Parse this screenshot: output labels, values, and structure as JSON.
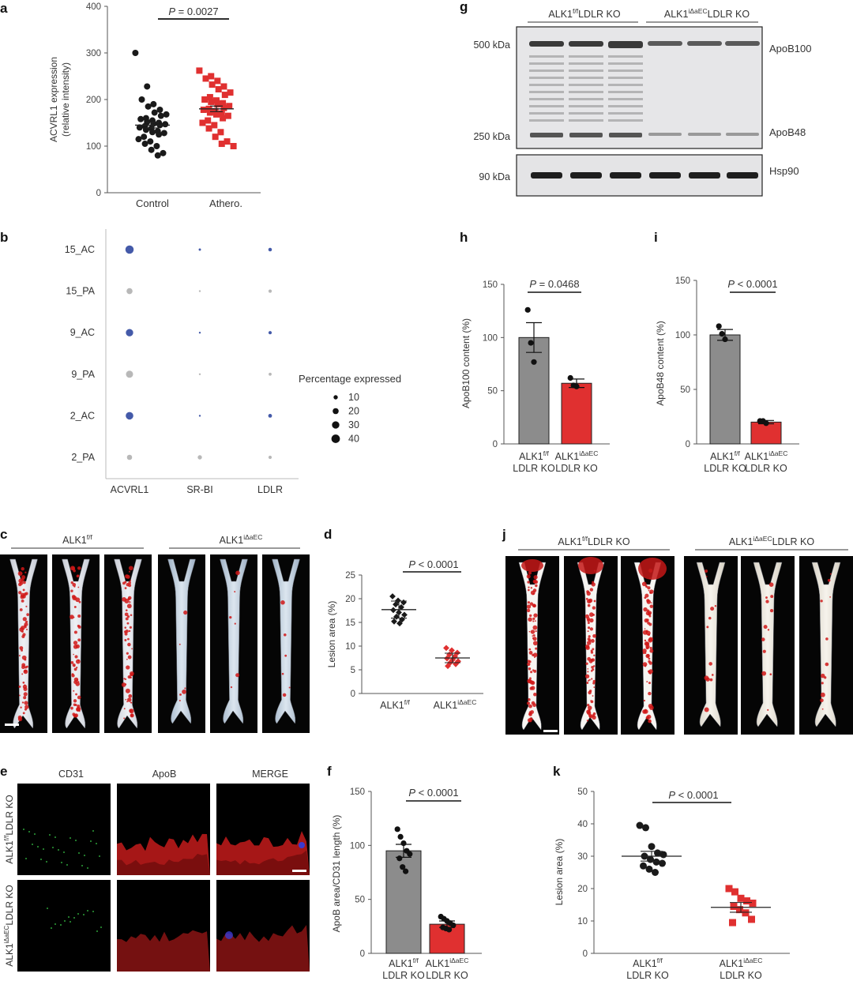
{
  "colors": {
    "black": "#1a1a1a",
    "red": "#e03030",
    "gray_bar": "#8c8c8c",
    "dot_blue": "#3048a0",
    "dot_gray": "#b8b8b8",
    "axis": "#555555"
  },
  "panel_labels": {
    "a": "a",
    "b": "b",
    "c": "c",
    "d": "d",
    "e": "e",
    "f": "f",
    "g": "g",
    "h": "h",
    "i": "i",
    "j": "j",
    "k": "k"
  },
  "chart_data": [
    {
      "id": "a",
      "type": "scatter",
      "title": "",
      "xlabel": "",
      "ylabel": "ACVRL1 expression (relative intensity)",
      "ylabel_lines": [
        "ACVRL1 expression",
        "(relative intensity)"
      ],
      "categories": [
        "Control",
        "Athero."
      ],
      "yticks": [
        0,
        100,
        200,
        300,
        400
      ],
      "ylim": [
        0,
        400
      ],
      "pvalue_label": "P",
      "pvalue_text": " = 0.0027",
      "series": [
        {
          "category": "Control",
          "marker": "circle",
          "color": "#1a1a1a",
          "mean": 145,
          "sem": 6,
          "values": [
            300,
            228,
            200,
            190,
            185,
            178,
            172,
            168,
            165,
            160,
            158,
            155,
            152,
            150,
            148,
            147,
            145,
            143,
            140,
            138,
            135,
            132,
            130,
            128,
            125,
            120,
            115,
            110,
            105,
            100,
            92,
            85,
            80
          ]
        },
        {
          "category": "Athero.",
          "marker": "square",
          "color": "#e03030",
          "mean": 180,
          "sem": 6,
          "values": [
            262,
            250,
            245,
            240,
            232,
            228,
            222,
            215,
            210,
            205,
            200,
            198,
            195,
            192,
            190,
            186,
            182,
            180,
            178,
            175,
            172,
            170,
            168,
            165,
            160,
            155,
            150,
            145,
            138,
            130,
            120,
            110,
            105,
            100
          ]
        }
      ]
    },
    {
      "id": "b",
      "type": "scatter",
      "subtype": "dotplot",
      "title": "",
      "xlabel": "",
      "ylabel": "",
      "x_categories": [
        "ACVRL1",
        "SR-BI",
        "LDLR"
      ],
      "y_categories": [
        "15_AC",
        "15_PA",
        "9_AC",
        "9_PA",
        "2_AC",
        "2_PA"
      ],
      "legend_title": "Percentage expressed",
      "legend_placement": "right",
      "legend_sizes": [
        10,
        20,
        30,
        40
      ],
      "points": [
        {
          "x": "ACVRL1",
          "y": "15_AC",
          "pct": 38,
          "color": "blue"
        },
        {
          "x": "ACVRL1",
          "y": "15_PA",
          "pct": 20,
          "color": "gray"
        },
        {
          "x": "ACVRL1",
          "y": "9_AC",
          "pct": 30,
          "color": "blue"
        },
        {
          "x": "ACVRL1",
          "y": "9_PA",
          "pct": 28,
          "color": "gray"
        },
        {
          "x": "ACVRL1",
          "y": "2_AC",
          "pct": 32,
          "color": "blue"
        },
        {
          "x": "ACVRL1",
          "y": "2_PA",
          "pct": 15,
          "color": "gray"
        },
        {
          "x": "SR-BI",
          "y": "15_AC",
          "pct": 3,
          "color": "blue"
        },
        {
          "x": "SR-BI",
          "y": "15_PA",
          "pct": 2,
          "color": "gray"
        },
        {
          "x": "SR-BI",
          "y": "9_AC",
          "pct": 2,
          "color": "blue"
        },
        {
          "x": "SR-BI",
          "y": "9_PA",
          "pct": 2,
          "color": "gray"
        },
        {
          "x": "SR-BI",
          "y": "2_AC",
          "pct": 2,
          "color": "blue"
        },
        {
          "x": "SR-BI",
          "y": "2_PA",
          "pct": 10,
          "color": "gray"
        },
        {
          "x": "LDLR",
          "y": "15_AC",
          "pct": 7,
          "color": "blue"
        },
        {
          "x": "LDLR",
          "y": "15_PA",
          "pct": 6,
          "color": "gray"
        },
        {
          "x": "LDLR",
          "y": "9_AC",
          "pct": 6,
          "color": "blue"
        },
        {
          "x": "LDLR",
          "y": "9_PA",
          "pct": 5,
          "color": "gray"
        },
        {
          "x": "LDLR",
          "y": "2_AC",
          "pct": 8,
          "color": "blue"
        },
        {
          "x": "LDLR",
          "y": "2_PA",
          "pct": 6,
          "color": "gray"
        }
      ]
    },
    {
      "id": "d",
      "type": "scatter",
      "title": "",
      "xlabel": "",
      "ylabel": "Lesion area (%)",
      "categories": [
        "ALK1f/f",
        "ALK1iΔaEC"
      ],
      "yticks": [
        0,
        5,
        10,
        15,
        20,
        25
      ],
      "ylim": [
        0,
        25
      ],
      "pvalue_label": "P",
      "pvalue_text": " < 0.0001",
      "series": [
        {
          "category": "ALK1f/f",
          "marker": "diamond",
          "color": "#1a1a1a",
          "mean": 17.7,
          "sem": 0.6,
          "sd": 1.8,
          "values": [
            20.5,
            19.6,
            19.2,
            18.8,
            18.2,
            17.6,
            17.1,
            16.6,
            16.2,
            15.6,
            15.2,
            14.8
          ]
        },
        {
          "category": "ALK1iΔaEC",
          "marker": "diamond",
          "color": "#e03030",
          "mean": 7.5,
          "sem": 0.3,
          "sd": 1.0,
          "values": [
            9.6,
            9.1,
            8.6,
            8.2,
            7.8,
            7.4,
            7.1,
            6.8,
            6.5,
            6.2,
            5.8
          ]
        }
      ]
    },
    {
      "id": "f",
      "type": "bar",
      "title": "",
      "xlabel": "",
      "ylabel": "ApoB area/CD31 length (%)",
      "categories": [
        "ALK1f/f LDLR KO",
        "ALK1iΔaEC LDLR KO"
      ],
      "yticks": [
        0,
        50,
        100,
        150
      ],
      "ylim": [
        0,
        150
      ],
      "pvalue_label": "P",
      "pvalue_text": " < 0.0001",
      "values": [
        95,
        27
      ],
      "errors": [
        6,
        3
      ],
      "points": [
        [
          115,
          108,
          102,
          95,
          92,
          88,
          80,
          76
        ],
        [
          34,
          32,
          30,
          28,
          26,
          24,
          23,
          22
        ]
      ]
    },
    {
      "id": "h",
      "type": "bar",
      "title": "",
      "xlabel": "",
      "ylabel": "ApoB100 content (%)",
      "categories": [
        "ALK1f/f LDLR KO",
        "ALK1iΔaEC LDLR KO"
      ],
      "yticks": [
        0,
        50,
        100,
        150
      ],
      "ylim": [
        0,
        150
      ],
      "pvalue_label": "P",
      "pvalue_text": " = 0.0468",
      "values": [
        100,
        57
      ],
      "errors": [
        14,
        4
      ],
      "points": [
        [
          126,
          95,
          77
        ],
        [
          62,
          55,
          54
        ]
      ]
    },
    {
      "id": "i",
      "type": "bar",
      "title": "",
      "xlabel": "",
      "ylabel": "ApoB48 content (%)",
      "categories": [
        "ALK1f/f LDLR KO",
        "ALK1iΔaEC LDLR KO"
      ],
      "yticks": [
        0,
        50,
        100,
        150
      ],
      "ylim": [
        0,
        150
      ],
      "pvalue_label": "P",
      "pvalue_text": " < 0.0001",
      "values": [
        100,
        20
      ],
      "errors": [
        5,
        1.5
      ],
      "points": [
        [
          108,
          101,
          96
        ],
        [
          21,
          21,
          19
        ]
      ]
    },
    {
      "id": "k",
      "type": "scatter",
      "title": "",
      "xlabel": "",
      "ylabel": "Lesion area (%)",
      "categories": [
        "ALK1f/f LDLR KO",
        "ALK1iΔaEC LDLR KO"
      ],
      "yticks": [
        0,
        10,
        20,
        30,
        40,
        50
      ],
      "ylim": [
        0,
        50
      ],
      "pvalue_label": "P",
      "pvalue_text": " < 0.0001",
      "series": [
        {
          "category": "ALK1f/f LDLR KO",
          "marker": "circle",
          "color": "#1a1a1a",
          "mean": 30,
          "sem": 1.5,
          "values": [
            39.5,
            38.8,
            33,
            31,
            30.5,
            30,
            29,
            28.2,
            27.8,
            27,
            26,
            25
          ]
        },
        {
          "category": "ALK1iΔaEC LDLR KO",
          "marker": "square",
          "color": "#e03030",
          "mean": 14.2,
          "sem": 1.5,
          "values": [
            20,
            19,
            17,
            16.2,
            15.5,
            14.5,
            13.5,
            12.5,
            10.5,
            9.5
          ]
        }
      ]
    }
  ],
  "panel_c": {
    "group1": "ALK1",
    "group1_sup": "f/f",
    "group2": "ALK1",
    "group2_sup": "iΔaEC"
  },
  "panel_e": {
    "cols": [
      "CD31",
      "ApoB",
      "MERGE"
    ],
    "row1_main": "ALK1",
    "row1_sup": "f/f",
    "row1_suffix": "LDLR KO",
    "row2_main": "ALK1",
    "row2_sup": "iΔaEC",
    "row2_suffix": "LDLR KO"
  },
  "panel_g": {
    "group1_main": "ALK1",
    "group1_sup": "f/f",
    "group1_suffix": "LDLR KO",
    "group2_main": "ALK1",
    "group2_sup": "iΔaEC",
    "group2_suffix": "LDLR KO",
    "markers": [
      "500 kDa",
      "250 kDa",
      "90 kDa"
    ],
    "bands": [
      "ApoB100",
      "ApoB48",
      "Hsp90"
    ]
  },
  "panel_j": {
    "group1_main": "ALK1",
    "group1_sup": "f/f",
    "group1_suffix": "LDLR KO",
    "group2_main": "ALK1",
    "group2_sup": "iΔaEC",
    "group2_suffix": "LDLR KO"
  },
  "xlabels": {
    "ctrl": "Control",
    "athero": "Athero.",
    "alk1": "ALK1",
    "ff": "f/f",
    "iaec": "iΔaEC",
    "ldlr": "LDLR KO"
  }
}
